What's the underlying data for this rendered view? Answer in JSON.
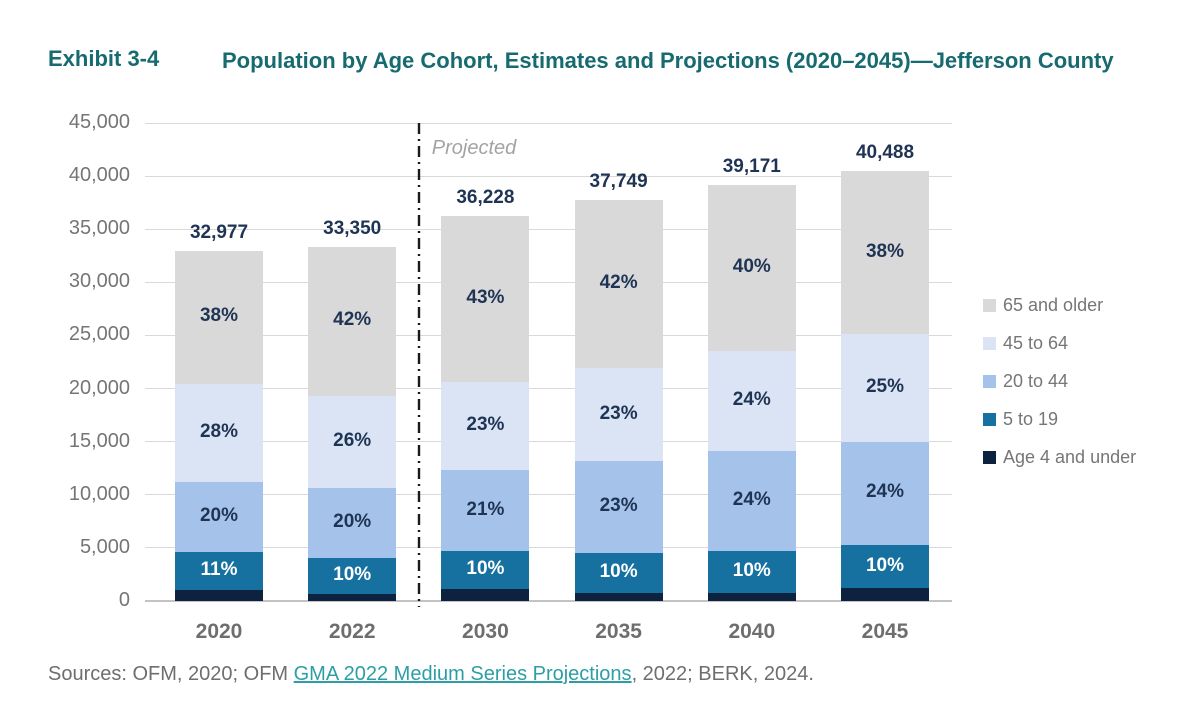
{
  "header": {
    "exhibit_label": "Exhibit 3-4",
    "title": "Population by Age Cohort, Estimates and Projections (2020–2045)—Jefferson County"
  },
  "chart_data": {
    "type": "bar",
    "stacked": true,
    "title": "Population by Age Cohort, Estimates and Projections (2020–2045)—Jefferson County",
    "categories": [
      "2020",
      "2022",
      "2030",
      "2035",
      "2040",
      "2045"
    ],
    "totals": [
      32977,
      33350,
      36228,
      37749,
      39171,
      40488
    ],
    "total_labels": [
      "32,977",
      "33,350",
      "36,228",
      "37,749",
      "39,171",
      "40,488"
    ],
    "series": [
      {
        "name": "Age 4 and under",
        "color": "#0d223f",
        "percents": [
          3,
          2,
          3,
          2,
          2,
          3
        ],
        "show_labels": false
      },
      {
        "name": "5 to 19",
        "color": "#1671a0",
        "percents": [
          11,
          10,
          10,
          10,
          10,
          10
        ],
        "show_labels": true,
        "label_color": "#ffffff"
      },
      {
        "name": "20 to 44",
        "color": "#a5c3ea",
        "percents": [
          20,
          20,
          21,
          23,
          24,
          24
        ],
        "show_labels": true
      },
      {
        "name": "45 to 64",
        "color": "#dbe4f4",
        "percents": [
          28,
          26,
          23,
          23,
          24,
          25
        ],
        "show_labels": true
      },
      {
        "name": "65 and older",
        "color": "#d9d9d9",
        "percents": [
          38,
          42,
          43,
          42,
          40,
          38
        ],
        "show_labels": true
      }
    ],
    "ylim": [
      0,
      45000
    ],
    "ytick_step": 5000,
    "ytick_labels": [
      "0",
      "5,000",
      "10,000",
      "15,000",
      "20,000",
      "25,000",
      "30,000",
      "35,000",
      "40,000",
      "45,000"
    ],
    "grid": true,
    "legend_position": "right",
    "legend_order_top_to_bottom": [
      "65 and older",
      "45 to 64",
      "20 to 44",
      "5 to 19",
      "Age 4 and under"
    ],
    "annotation": {
      "text": "Projected",
      "divider_between": [
        "2022",
        "2030"
      ]
    },
    "label_color": "#1f3454"
  },
  "footer": {
    "prefix": "Sources: OFM, 2020; OFM ",
    "link": "GMA 2022 Medium Series Projections",
    "suffix": ", 2022; BERK, 2024."
  }
}
